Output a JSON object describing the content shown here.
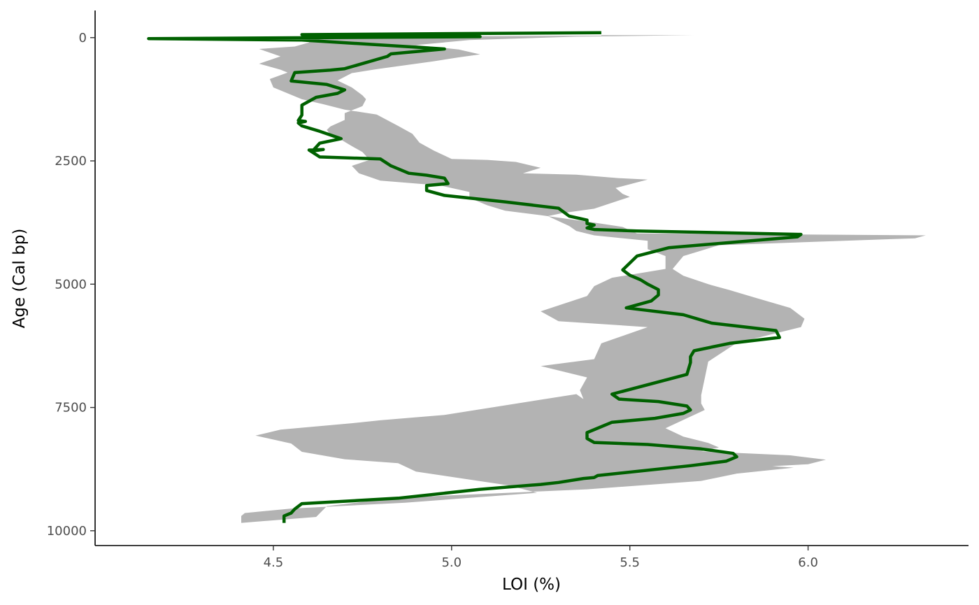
{
  "chart_data": {
    "type": "line",
    "title": "",
    "xlabel": "LOI (%)",
    "ylabel": "Age (Cal bp)",
    "xlim": [
      4.0,
      6.45
    ],
    "ylim": [
      10300,
      -550
    ],
    "y_reversed": true,
    "grid": false,
    "legend": "none",
    "x_ticks": [
      4.5,
      5.0,
      5.5,
      6.0
    ],
    "x_tick_labels": [
      "4.5",
      "5.0",
      "5.5",
      "6.0"
    ],
    "y_ticks": [
      0,
      2500,
      5000,
      7500,
      10000
    ],
    "y_tick_labels": [
      "0",
      "2500",
      "5000",
      "7500",
      "10000"
    ],
    "colors": {
      "line": "#006100",
      "band": "#b3b3b3",
      "axis": "#000000"
    },
    "series": [
      {
        "role": "mean",
        "x": [
          5.42,
          4.58,
          5.08,
          4.15,
          4.58,
          4.98,
          4.83,
          4.82,
          4.7,
          4.66,
          4.56,
          4.55,
          4.65,
          4.7,
          4.68,
          4.62,
          4.58,
          4.58,
          4.57,
          4.59,
          4.57,
          4.58,
          4.63,
          4.69,
          4.63,
          4.61,
          4.64,
          4.6,
          4.63,
          4.8,
          4.83,
          4.86,
          4.88,
          4.93,
          4.98,
          4.99,
          4.93,
          4.93,
          4.98,
          5.15,
          5.3,
          5.33,
          5.38,
          5.38,
          5.4,
          5.38,
          5.4,
          5.52,
          5.98,
          5.97,
          5.61,
          5.52,
          5.48,
          5.5,
          5.53,
          5.55,
          5.58,
          5.58,
          5.56,
          5.49,
          5.65,
          5.73,
          5.91,
          5.92,
          5.78,
          5.68,
          5.67,
          5.67,
          5.66,
          5.45,
          5.47,
          5.58,
          5.66,
          5.67,
          5.65,
          5.57,
          5.45,
          5.38,
          5.38,
          5.4,
          5.55,
          5.7,
          5.79,
          5.8,
          5.77,
          5.67,
          5.41,
          5.4,
          5.37,
          5.3,
          5.25,
          5.08,
          4.85,
          4.58,
          4.56,
          4.55,
          4.53,
          4.53
        ],
        "y": [
          -100,
          -60,
          -20,
          20,
          50,
          230,
          330,
          380,
          630,
          660,
          710,
          880,
          950,
          1060,
          1130,
          1210,
          1370,
          1570,
          1680,
          1700,
          1730,
          1790,
          1900,
          2050,
          2140,
          2300,
          2270,
          2280,
          2420,
          2460,
          2600,
          2690,
          2750,
          2790,
          2850,
          2960,
          3000,
          3100,
          3200,
          3330,
          3460,
          3620,
          3700,
          3770,
          3800,
          3860,
          3890,
          3920,
          3990,
          4040,
          4260,
          4430,
          4710,
          4820,
          4910,
          5000,
          5110,
          5220,
          5340,
          5480,
          5620,
          5790,
          5940,
          6080,
          6200,
          6350,
          6470,
          6590,
          6830,
          7230,
          7330,
          7380,
          7470,
          7550,
          7620,
          7720,
          7800,
          8010,
          8130,
          8210,
          8250,
          8340,
          8430,
          8500,
          8590,
          8680,
          8880,
          8920,
          8940,
          9020,
          9060,
          9160,
          9340,
          9450,
          9560,
          9640,
          9700,
          9840
        ]
      },
      {
        "role": "band_upper",
        "x": [
          5.68,
          5.35,
          5.05,
          4.9,
          5.02,
          5.08,
          5.02,
          4.95,
          4.87,
          4.79,
          4.72,
          4.68,
          4.72,
          4.75,
          4.76,
          4.75,
          4.7,
          4.7,
          4.66,
          4.65,
          4.66,
          4.69,
          4.72,
          4.75,
          4.77,
          4.72,
          4.74,
          4.8,
          4.97,
          5.05,
          5.05,
          5.1,
          5.15,
          5.25,
          5.35,
          5.4,
          5.48,
          5.52,
          6.33,
          6.3,
          5.75,
          5.65,
          5.62,
          5.65,
          5.72,
          5.78,
          5.85,
          5.95,
          5.99,
          5.98,
          5.8,
          5.72,
          5.71,
          5.7,
          5.7,
          5.71,
          5.6,
          5.65,
          5.72,
          5.75,
          5.7,
          5.95,
          6.05,
          6.0,
          5.9,
          5.96,
          5.8,
          5.7,
          5.38,
          4.85,
          4.65,
          4.62
        ],
        "y": [
          -50,
          -20,
          50,
          150,
          240,
          340,
          400,
          480,
          560,
          640,
          720,
          870,
          1010,
          1170,
          1250,
          1390,
          1530,
          1670,
          1800,
          1870,
          1970,
          2070,
          2200,
          2320,
          2480,
          2600,
          2750,
          2900,
          3000,
          3130,
          3250,
          3400,
          3510,
          3600,
          3700,
          3750,
          3840,
          3970,
          4010,
          4070,
          4210,
          4430,
          4690,
          4830,
          5000,
          5120,
          5270,
          5480,
          5700,
          5870,
          6190,
          6570,
          6910,
          7250,
          7420,
          7550,
          7920,
          8090,
          8220,
          8310,
          8390,
          8470,
          8560,
          8650,
          8690,
          8720,
          8840,
          8990,
          9160,
          9330,
          9500,
          9720
        ]
      },
      {
        "role": "band_lower",
        "x": [
          4.41,
          4.41,
          4.42,
          4.55,
          4.87,
          5.24,
          5.16,
          4.9,
          4.85,
          4.7,
          4.58,
          4.55,
          4.45,
          4.52,
          4.72,
          4.8,
          4.98,
          5.35,
          5.37,
          5.36,
          5.38,
          5.25,
          5.4,
          5.42,
          5.55,
          5.3,
          5.25,
          5.38,
          5.4,
          5.45,
          5.6,
          5.6,
          5.55,
          5.55,
          5.4,
          5.35,
          5.33,
          5.27,
          5.31,
          5.4,
          5.5,
          5.48,
          5.46,
          5.55,
          5.47,
          5.35,
          5.2,
          5.25,
          5.18,
          5.1,
          5.0,
          4.95,
          4.91,
          4.89,
          4.85,
          4.79,
          4.7,
          4.64,
          4.58,
          4.5,
          4.49,
          4.54,
          4.52,
          4.46,
          4.52,
          4.46,
          4.56,
          4.6,
          4.6,
          4.56,
          4.65,
          4.78,
          4.78,
          5.42,
          5.42
        ],
        "y": [
          9840,
          9700,
          9640,
          9550,
          9430,
          9230,
          9080,
          8800,
          8630,
          8550,
          8400,
          8230,
          8070,
          7950,
          7820,
          7760,
          7650,
          7230,
          7330,
          7150,
          6890,
          6660,
          6520,
          6200,
          5870,
          5750,
          5550,
          5240,
          5040,
          4870,
          4690,
          4430,
          4290,
          4120,
          4010,
          3920,
          3820,
          3620,
          3560,
          3470,
          3230,
          3170,
          3050,
          2880,
          2850,
          2780,
          2750,
          2640,
          2520,
          2480,
          2460,
          2290,
          2130,
          1950,
          1790,
          1560,
          1460,
          1350,
          1250,
          1010,
          840,
          710,
          650,
          530,
          380,
          230,
          180,
          100,
          60,
          40,
          20,
          0,
          -20,
          -40,
          -50
        ]
      }
    ]
  }
}
